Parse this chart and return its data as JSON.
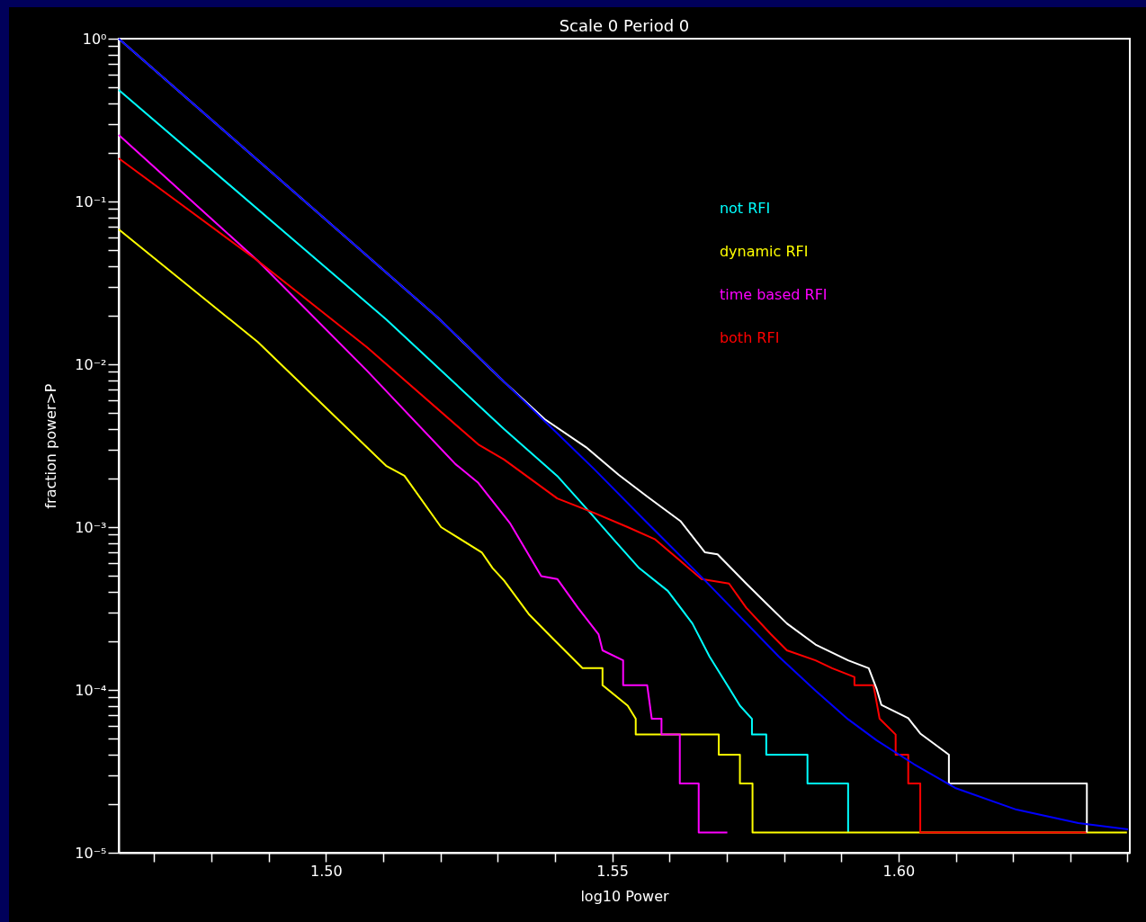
{
  "chart_data": {
    "type": "line",
    "title": "Scale 0 Period 0",
    "xlabel": "log10 Power",
    "ylabel": "fraction power>P",
    "log": "y",
    "grid": false,
    "legend": "top right",
    "xlim": [
      1.4638,
      1.6404
    ],
    "xticks": [
      {
        "value": 1.47,
        "label": null
      },
      {
        "value": 1.48,
        "label": null
      },
      {
        "value": 1.49,
        "label": null
      },
      {
        "value": 1.5,
        "label": "1.50"
      },
      {
        "value": 1.51,
        "label": null
      },
      {
        "value": 1.52,
        "label": null
      },
      {
        "value": 1.53,
        "label": null
      },
      {
        "value": 1.54,
        "label": null
      },
      {
        "value": 1.55,
        "label": "1.55"
      },
      {
        "value": 1.56,
        "label": null
      },
      {
        "value": 1.57,
        "label": null
      },
      {
        "value": 1.58,
        "label": null
      },
      {
        "value": 1.59,
        "label": null
      },
      {
        "value": 1.6,
        "label": "1.60"
      },
      {
        "value": 1.61,
        "label": null
      },
      {
        "value": 1.62,
        "label": null
      },
      {
        "value": 1.63,
        "label": null
      },
      {
        "value": 1.64,
        "label": null
      }
    ],
    "ylim": [
      1e-05,
      1
    ],
    "yticks": [
      {
        "value": 1e-05,
        "label": "10⁻⁵"
      },
      {
        "value": 2e-05,
        "label": null
      },
      {
        "value": 3e-05,
        "label": null
      },
      {
        "value": 4e-05,
        "label": null
      },
      {
        "value": 5e-05,
        "label": null
      },
      {
        "value": 6e-05,
        "label": null
      },
      {
        "value": 7e-05,
        "label": null
      },
      {
        "value": 8e-05,
        "label": null
      },
      {
        "value": 9e-05,
        "label": null
      },
      {
        "value": 0.0001,
        "label": "10⁻⁴"
      },
      {
        "value": 0.0002,
        "label": null
      },
      {
        "value": 0.0003,
        "label": null
      },
      {
        "value": 0.0004,
        "label": null
      },
      {
        "value": 0.0005,
        "label": null
      },
      {
        "value": 0.0006,
        "label": null
      },
      {
        "value": 0.0007,
        "label": null
      },
      {
        "value": 0.0008,
        "label": null
      },
      {
        "value": 0.0009,
        "label": null
      },
      {
        "value": 0.001,
        "label": "10⁻³"
      },
      {
        "value": 0.002,
        "label": null
      },
      {
        "value": 0.003,
        "label": null
      },
      {
        "value": 0.004,
        "label": null
      },
      {
        "value": 0.005,
        "label": null
      },
      {
        "value": 0.006,
        "label": null
      },
      {
        "value": 0.007,
        "label": null
      },
      {
        "value": 0.008,
        "label": null
      },
      {
        "value": 0.009,
        "label": null
      },
      {
        "value": 0.01,
        "label": "10⁻²"
      },
      {
        "value": 0.02,
        "label": null
      },
      {
        "value": 0.03,
        "label": null
      },
      {
        "value": 0.04,
        "label": null
      },
      {
        "value": 0.05,
        "label": null
      },
      {
        "value": 0.06,
        "label": null
      },
      {
        "value": 0.07,
        "label": null
      },
      {
        "value": 0.08,
        "label": null
      },
      {
        "value": 0.09,
        "label": null
      },
      {
        "value": 0.1,
        "label": "10⁻¹"
      },
      {
        "value": 0.2,
        "label": null
      },
      {
        "value": 0.3,
        "label": null
      },
      {
        "value": 0.4,
        "label": null
      },
      {
        "value": 0.5,
        "label": null
      },
      {
        "value": 0.6,
        "label": null
      },
      {
        "value": 0.7,
        "label": null
      },
      {
        "value": 0.8,
        "label": null
      },
      {
        "value": 0.9,
        "label": null
      },
      {
        "value": 1,
        "label": "10⁰"
      }
    ],
    "series": [
      {
        "name": "not RFI",
        "color": "#00ffff",
        "x": [
          1.4638,
          1.5105,
          1.5311,
          1.5404,
          1.5462,
          1.5505,
          1.5547,
          1.5597,
          1.564,
          1.567,
          1.5701,
          1.5723,
          1.5744,
          1.5744,
          1.5769,
          1.5769,
          1.5841,
          1.5841,
          1.5912,
          1.5912
        ],
        "values": [
          0.484,
          0.0189,
          0.004,
          0.00206,
          0.00122,
          0.00082,
          0.00056,
          0.000406,
          0.000256,
          0.00016,
          0.000107,
          8e-05,
          6.65e-05,
          5.32e-05,
          5.32e-05,
          4e-05,
          4e-05,
          2.66e-05,
          2.66e-05,
          1.33e-05
        ]
      },
      {
        "name": "dynamic RFI",
        "color": "#ffff00",
        "x": [
          1.4638,
          1.4881,
          1.5105,
          1.5137,
          1.5201,
          1.5272,
          1.5291,
          1.5311,
          1.5355,
          1.5398,
          1.5448,
          1.5483,
          1.5483,
          1.5527,
          1.5541,
          1.5541,
          1.5686,
          1.5686,
          1.5723,
          1.5723,
          1.5745,
          1.5745,
          1.6399
        ],
        "values": [
          0.0674,
          0.0137,
          0.00238,
          0.00207,
          0.001,
          0.0007,
          0.00056,
          0.00047,
          0.00029,
          0.000204,
          0.000136,
          0.000136,
          0.000107,
          8e-05,
          6.65e-05,
          5.32e-05,
          5.32e-05,
          4e-05,
          4e-05,
          2.66e-05,
          2.66e-05,
          1.33e-05,
          1.33e-05
        ]
      },
      {
        "name": "time based RFI",
        "color": "#ff00ff",
        "x": [
          1.4638,
          1.4881,
          1.5072,
          1.5226,
          1.5266,
          1.5322,
          1.5376,
          1.5404,
          1.544,
          1.5476,
          1.5483,
          1.5519,
          1.5519,
          1.5561,
          1.5569,
          1.5586,
          1.5586,
          1.5618,
          1.5618,
          1.5651,
          1.5651,
          1.5701
        ],
        "values": [
          0.256,
          0.0432,
          0.0091,
          0.00244,
          0.00187,
          0.00105,
          0.0005,
          0.00048,
          0.00032,
          0.00022,
          0.000175,
          0.000152,
          0.000107,
          0.000107,
          6.65e-05,
          6.65e-05,
          5.32e-05,
          5.32e-05,
          2.66e-05,
          2.66e-05,
          1.33e-05,
          1.33e-05
        ]
      },
      {
        "name": "both RFI",
        "color": "#ff0000",
        "x": [
          1.4638,
          1.4881,
          1.5072,
          1.5266,
          1.5311,
          1.5404,
          1.5469,
          1.5527,
          1.5575,
          1.5612,
          1.5656,
          1.5704,
          1.5734,
          1.5777,
          1.5805,
          1.5855,
          1.5884,
          1.5923,
          1.5923,
          1.5956,
          1.5959,
          1.5967,
          1.5995,
          1.5995,
          1.6017,
          1.6017,
          1.6038,
          1.6038,
          1.6329
        ],
        "values": [
          0.184,
          0.0432,
          0.0127,
          0.00322,
          0.0026,
          0.0015,
          0.00122,
          0.001,
          0.00084,
          0.00065,
          0.00048,
          0.00045,
          0.00032,
          0.00022,
          0.000175,
          0.000152,
          0.000136,
          0.00012,
          0.000107,
          0.000107,
          9.5e-05,
          6.65e-05,
          5.32e-05,
          4e-05,
          4e-05,
          2.66e-05,
          2.66e-05,
          1.33e-05,
          1.33e-05
        ]
      },
      {
        "color": "#ffffff",
        "x": [
          1.4638,
          1.5195,
          1.5311,
          1.5382,
          1.5454,
          1.5511,
          1.5561,
          1.5619,
          1.5662,
          1.5684,
          1.5734,
          1.5769,
          1.5805,
          1.5855,
          1.5912,
          1.5948,
          1.5962,
          1.597,
          1.6017,
          1.6038,
          1.6088,
          1.6088,
          1.6329,
          1.6329
        ],
        "values": [
          1,
          0.0194,
          0.0078,
          0.0046,
          0.0031,
          0.0021,
          0.00154,
          0.00109,
          0.0007,
          0.00068,
          0.00045,
          0.00034,
          0.000256,
          0.00019,
          0.000152,
          0.000136,
          0.000101,
          8.1e-05,
          6.7e-05,
          5.4e-05,
          4e-05,
          2.66e-05,
          2.66e-05,
          1.33e-05
        ]
      },
      {
        "color": "#0000ff",
        "x": [
          1.4638,
          1.5195,
          1.5469,
          1.5558,
          1.5662,
          1.5791,
          1.5855,
          1.5912,
          1.5962,
          1.6027,
          1.6099,
          1.6206,
          1.6314,
          1.6401
        ],
        "values": [
          1,
          0.0194,
          0.00226,
          0.00109,
          0.00047,
          0.00016,
          9.9e-05,
          6.6e-05,
          4.9e-05,
          3.5e-05,
          2.5e-05,
          1.84e-05,
          1.52e-05,
          1.39e-05
        ]
      }
    ]
  }
}
